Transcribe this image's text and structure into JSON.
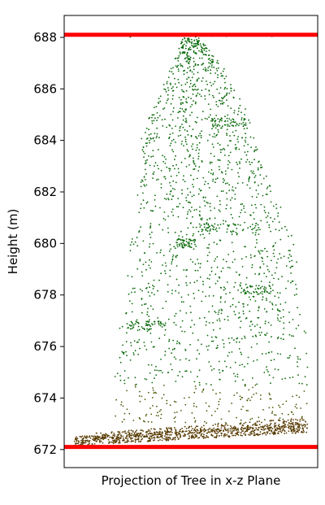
{
  "chart_data": {
    "type": "scatter",
    "title": "",
    "xlabel": "Projection of Tree in x-z Plane",
    "ylabel": "Height (m)",
    "ylim": [
      671.3,
      688.85
    ],
    "xlim": [
      0,
      1
    ],
    "yticks": [
      672,
      674,
      676,
      678,
      680,
      682,
      684,
      686,
      688
    ],
    "xticks": [],
    "grid": false,
    "legend": "none",
    "reference_lines": [
      {
        "y": 688.1,
        "color": "#ff0000"
      },
      {
        "y": 672.1,
        "color": "#ff0000"
      }
    ],
    "colors": {
      "foliage": "#0b6a0b",
      "trunk_base": "#5a3e06",
      "transition": "#4a5a08"
    },
    "series": [
      {
        "color": "#0b6a0b",
        "points_description_env": [
          [
            688.0,
            0.47,
            0.53
          ],
          [
            687.0,
            0.43,
            0.62
          ],
          [
            686.0,
            0.38,
            0.67
          ],
          [
            685.0,
            0.34,
            0.73
          ],
          [
            684.0,
            0.3,
            0.75
          ],
          [
            683.0,
            0.32,
            0.79
          ],
          [
            682.0,
            0.29,
            0.82
          ],
          [
            681.0,
            0.28,
            0.88
          ],
          [
            680.0,
            0.26,
            0.92
          ],
          [
            679.0,
            0.25,
            0.92
          ],
          [
            678.0,
            0.25,
            0.92
          ],
          [
            677.0,
            0.24,
            0.95
          ],
          [
            676.5,
            0.2,
            0.96
          ],
          [
            676.0,
            0.22,
            0.96
          ]
        ]
      }
    ]
  }
}
